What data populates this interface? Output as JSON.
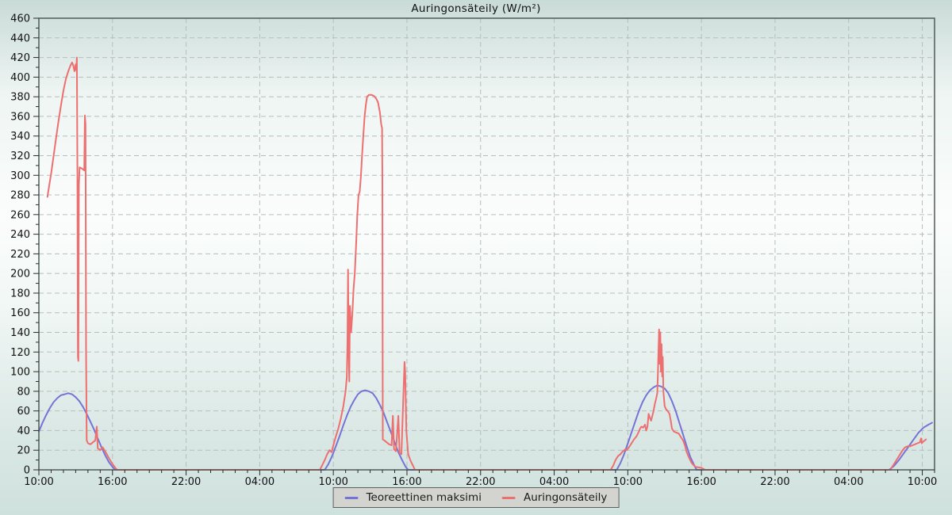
{
  "style": {
    "background_gradient": [
      "#c9dbd7",
      "#eef5f3",
      "#fbfdfc",
      "#f2f8f6",
      "#dce9e6",
      "#cfe1dd"
    ],
    "grid_color": "#b5bebc",
    "border_color": "#4f5a57",
    "tick_color": "#2a2a2a",
    "text_color": "#111111",
    "legend_background": "#d3d4cf",
    "legend_border": "#5f5f5f"
  },
  "chart_data": {
    "type": "line",
    "title": "Auringonsäteily (W/m²)",
    "grid": "dashed",
    "legend_position": "bottom-center",
    "x_axis": {
      "span_hours": 73,
      "major_tick_hours": 6,
      "minor_tick_hours": 1,
      "tick_labels": [
        "10:00",
        "16:00",
        "22:00",
        "04:00",
        "10:00",
        "16:00",
        "22:00",
        "04:00",
        "10:00",
        "16:00",
        "22:00",
        "04:00",
        "10:00"
      ]
    },
    "y_axis": {
      "min": 0,
      "max": 460,
      "major_step": 20,
      "minor_step": 10,
      "tick_labels": [
        "0",
        "20",
        "40",
        "60",
        "80",
        "100",
        "120",
        "140",
        "160",
        "180",
        "200",
        "220",
        "240",
        "260",
        "280",
        "300",
        "320",
        "340",
        "360",
        "380",
        "400",
        "420",
        "440",
        "460"
      ]
    },
    "series": [
      {
        "name": "Teoreettinen maksimi",
        "color": "#7474d6",
        "points": [
          [
            0,
            39
          ],
          [
            0.3,
            48
          ],
          [
            0.6,
            56
          ],
          [
            0.9,
            63
          ],
          [
            1.2,
            69
          ],
          [
            1.5,
            73
          ],
          [
            1.8,
            76
          ],
          [
            2.1,
            77
          ],
          [
            2.4,
            78
          ],
          [
            2.7,
            77
          ],
          [
            3.0,
            74
          ],
          [
            3.3,
            70
          ],
          [
            3.6,
            64
          ],
          [
            3.9,
            57
          ],
          [
            4.2,
            49
          ],
          [
            4.5,
            41
          ],
          [
            4.8,
            32
          ],
          [
            5.1,
            23
          ],
          [
            5.4,
            15
          ],
          [
            5.7,
            8
          ],
          [
            6.0,
            3
          ],
          [
            6.2,
            0
          ],
          [
            23.3,
            0
          ],
          [
            23.6,
            6
          ],
          [
            23.9,
            14
          ],
          [
            24.2,
            24
          ],
          [
            24.5,
            34
          ],
          [
            24.8,
            45
          ],
          [
            25.1,
            55
          ],
          [
            25.4,
            64
          ],
          [
            25.7,
            71
          ],
          [
            26.0,
            77
          ],
          [
            26.3,
            80
          ],
          [
            26.6,
            81
          ],
          [
            26.9,
            80
          ],
          [
            27.2,
            78
          ],
          [
            27.5,
            73
          ],
          [
            27.8,
            66
          ],
          [
            28.1,
            58
          ],
          [
            28.4,
            48
          ],
          [
            28.7,
            38
          ],
          [
            29.0,
            28
          ],
          [
            29.3,
            18
          ],
          [
            29.6,
            10
          ],
          [
            29.9,
            3
          ],
          [
            30.1,
            0
          ],
          [
            47.1,
            0
          ],
          [
            47.4,
            7
          ],
          [
            47.7,
            16
          ],
          [
            48.0,
            27
          ],
          [
            48.3,
            38
          ],
          [
            48.6,
            49
          ],
          [
            48.9,
            60
          ],
          [
            49.2,
            69
          ],
          [
            49.5,
            76
          ],
          [
            49.8,
            81
          ],
          [
            50.1,
            84
          ],
          [
            50.4,
            86
          ],
          [
            50.7,
            85
          ],
          [
            51.0,
            83
          ],
          [
            51.3,
            78
          ],
          [
            51.6,
            70
          ],
          [
            51.9,
            60
          ],
          [
            52.2,
            48
          ],
          [
            52.5,
            36
          ],
          [
            52.8,
            24
          ],
          [
            53.1,
            13
          ],
          [
            53.4,
            5
          ],
          [
            53.6,
            0
          ],
          [
            69.3,
            0
          ],
          [
            69.7,
            4
          ],
          [
            70.1,
            10
          ],
          [
            70.5,
            17
          ],
          [
            70.9,
            24
          ],
          [
            71.3,
            31
          ],
          [
            71.7,
            38
          ],
          [
            72.1,
            43
          ],
          [
            72.5,
            46
          ],
          [
            72.8,
            48
          ]
        ]
      },
      {
        "name": "Auringonsäteily",
        "color": "#ee6f6f",
        "points": [
          [
            0.7,
            278
          ],
          [
            0.85,
            290
          ],
          [
            1.0,
            302
          ],
          [
            1.2,
            320
          ],
          [
            1.4,
            338
          ],
          [
            1.6,
            355
          ],
          [
            1.8,
            371
          ],
          [
            2.0,
            386
          ],
          [
            2.2,
            398
          ],
          [
            2.4,
            406
          ],
          [
            2.55,
            411
          ],
          [
            2.7,
            415
          ],
          [
            2.8,
            412
          ],
          [
            2.9,
            406
          ],
          [
            3.0,
            413
          ],
          [
            3.05,
            407
          ],
          [
            3.1,
            420
          ],
          [
            3.14,
            300
          ],
          [
            3.18,
            115
          ],
          [
            3.22,
            111
          ],
          [
            3.26,
            290
          ],
          [
            3.32,
            308
          ],
          [
            3.5,
            307
          ],
          [
            3.7,
            305
          ],
          [
            3.75,
            361
          ],
          [
            3.8,
            352
          ],
          [
            3.85,
            120
          ],
          [
            3.9,
            30
          ],
          [
            4.0,
            27
          ],
          [
            4.2,
            26
          ],
          [
            4.4,
            28
          ],
          [
            4.6,
            30
          ],
          [
            4.72,
            44
          ],
          [
            4.8,
            22
          ],
          [
            5.0,
            20
          ],
          [
            5.2,
            23
          ],
          [
            5.4,
            19
          ],
          [
            5.7,
            12
          ],
          [
            6.0,
            6
          ],
          [
            6.3,
            1
          ],
          [
            6.4,
            0
          ],
          [
            22.9,
            0
          ],
          [
            23.1,
            5
          ],
          [
            23.3,
            10
          ],
          [
            23.5,
            16
          ],
          [
            23.7,
            20
          ],
          [
            23.85,
            18
          ],
          [
            24.0,
            25
          ],
          [
            24.2,
            34
          ],
          [
            24.4,
            42
          ],
          [
            24.6,
            52
          ],
          [
            24.8,
            64
          ],
          [
            25.0,
            80
          ],
          [
            25.1,
            95
          ],
          [
            25.15,
            130
          ],
          [
            25.2,
            204
          ],
          [
            25.25,
            120
          ],
          [
            25.3,
            90
          ],
          [
            25.35,
            167
          ],
          [
            25.45,
            140
          ],
          [
            25.55,
            160
          ],
          [
            25.65,
            185
          ],
          [
            25.75,
            200
          ],
          [
            25.85,
            228
          ],
          [
            25.95,
            258
          ],
          [
            26.05,
            280
          ],
          [
            26.15,
            283
          ],
          [
            26.25,
            300
          ],
          [
            26.35,
            322
          ],
          [
            26.45,
            342
          ],
          [
            26.55,
            360
          ],
          [
            26.65,
            372
          ],
          [
            26.75,
            380
          ],
          [
            26.9,
            382
          ],
          [
            27.1,
            382
          ],
          [
            27.3,
            381
          ],
          [
            27.5,
            378
          ],
          [
            27.65,
            374
          ],
          [
            27.8,
            364
          ],
          [
            27.9,
            352
          ],
          [
            27.97,
            348
          ],
          [
            28.0,
            296
          ],
          [
            28.03,
            31
          ],
          [
            28.15,
            30
          ],
          [
            28.35,
            28
          ],
          [
            28.55,
            26
          ],
          [
            28.75,
            25
          ],
          [
            28.85,
            55
          ],
          [
            28.95,
            21
          ],
          [
            29.1,
            19
          ],
          [
            29.3,
            55
          ],
          [
            29.4,
            17
          ],
          [
            29.55,
            16
          ],
          [
            29.8,
            110
          ],
          [
            29.85,
            100
          ],
          [
            29.95,
            40
          ],
          [
            30.1,
            16
          ],
          [
            30.3,
            9
          ],
          [
            30.5,
            4
          ],
          [
            30.65,
            0
          ],
          [
            46.6,
            0
          ],
          [
            46.8,
            4
          ],
          [
            47.0,
            10
          ],
          [
            47.2,
            14
          ],
          [
            47.4,
            16
          ],
          [
            47.6,
            19
          ],
          [
            47.8,
            21
          ],
          [
            47.9,
            20
          ],
          [
            48.1,
            23
          ],
          [
            48.3,
            27
          ],
          [
            48.5,
            31
          ],
          [
            48.7,
            34
          ],
          [
            48.9,
            39
          ],
          [
            49.0,
            42
          ],
          [
            49.1,
            44
          ],
          [
            49.25,
            43
          ],
          [
            49.4,
            46
          ],
          [
            49.5,
            40
          ],
          [
            49.6,
            44
          ],
          [
            49.7,
            57
          ],
          [
            49.8,
            53
          ],
          [
            49.9,
            50
          ],
          [
            50.0,
            55
          ],
          [
            50.1,
            60
          ],
          [
            50.2,
            67
          ],
          [
            50.3,
            72
          ],
          [
            50.4,
            78
          ],
          [
            50.45,
            95
          ],
          [
            50.5,
            120
          ],
          [
            50.55,
            143
          ],
          [
            50.6,
            108
          ],
          [
            50.65,
            140
          ],
          [
            50.7,
            100
          ],
          [
            50.75,
            128
          ],
          [
            50.8,
            95
          ],
          [
            50.85,
            115
          ],
          [
            50.9,
            80
          ],
          [
            51.0,
            65
          ],
          [
            51.1,
            62
          ],
          [
            51.25,
            60
          ],
          [
            51.4,
            57
          ],
          [
            51.5,
            50
          ],
          [
            51.6,
            42
          ],
          [
            51.75,
            39
          ],
          [
            51.95,
            38
          ],
          [
            52.15,
            37
          ],
          [
            52.35,
            33
          ],
          [
            52.5,
            30
          ],
          [
            52.65,
            25
          ],
          [
            52.8,
            18
          ],
          [
            53.0,
            12
          ],
          [
            53.2,
            7
          ],
          [
            53.5,
            3
          ],
          [
            54.0,
            2
          ],
          [
            54.3,
            0
          ],
          [
            69.4,
            0
          ],
          [
            69.6,
            4
          ],
          [
            69.8,
            8
          ],
          [
            70.0,
            12
          ],
          [
            70.2,
            16
          ],
          [
            70.4,
            20
          ],
          [
            70.6,
            23
          ],
          [
            70.8,
            24
          ],
          [
            71.0,
            24
          ],
          [
            71.2,
            25
          ],
          [
            71.4,
            26
          ],
          [
            71.6,
            27
          ],
          [
            71.8,
            28
          ],
          [
            71.9,
            32
          ],
          [
            71.95,
            27
          ],
          [
            72.1,
            29
          ],
          [
            72.3,
            31
          ]
        ]
      }
    ]
  }
}
